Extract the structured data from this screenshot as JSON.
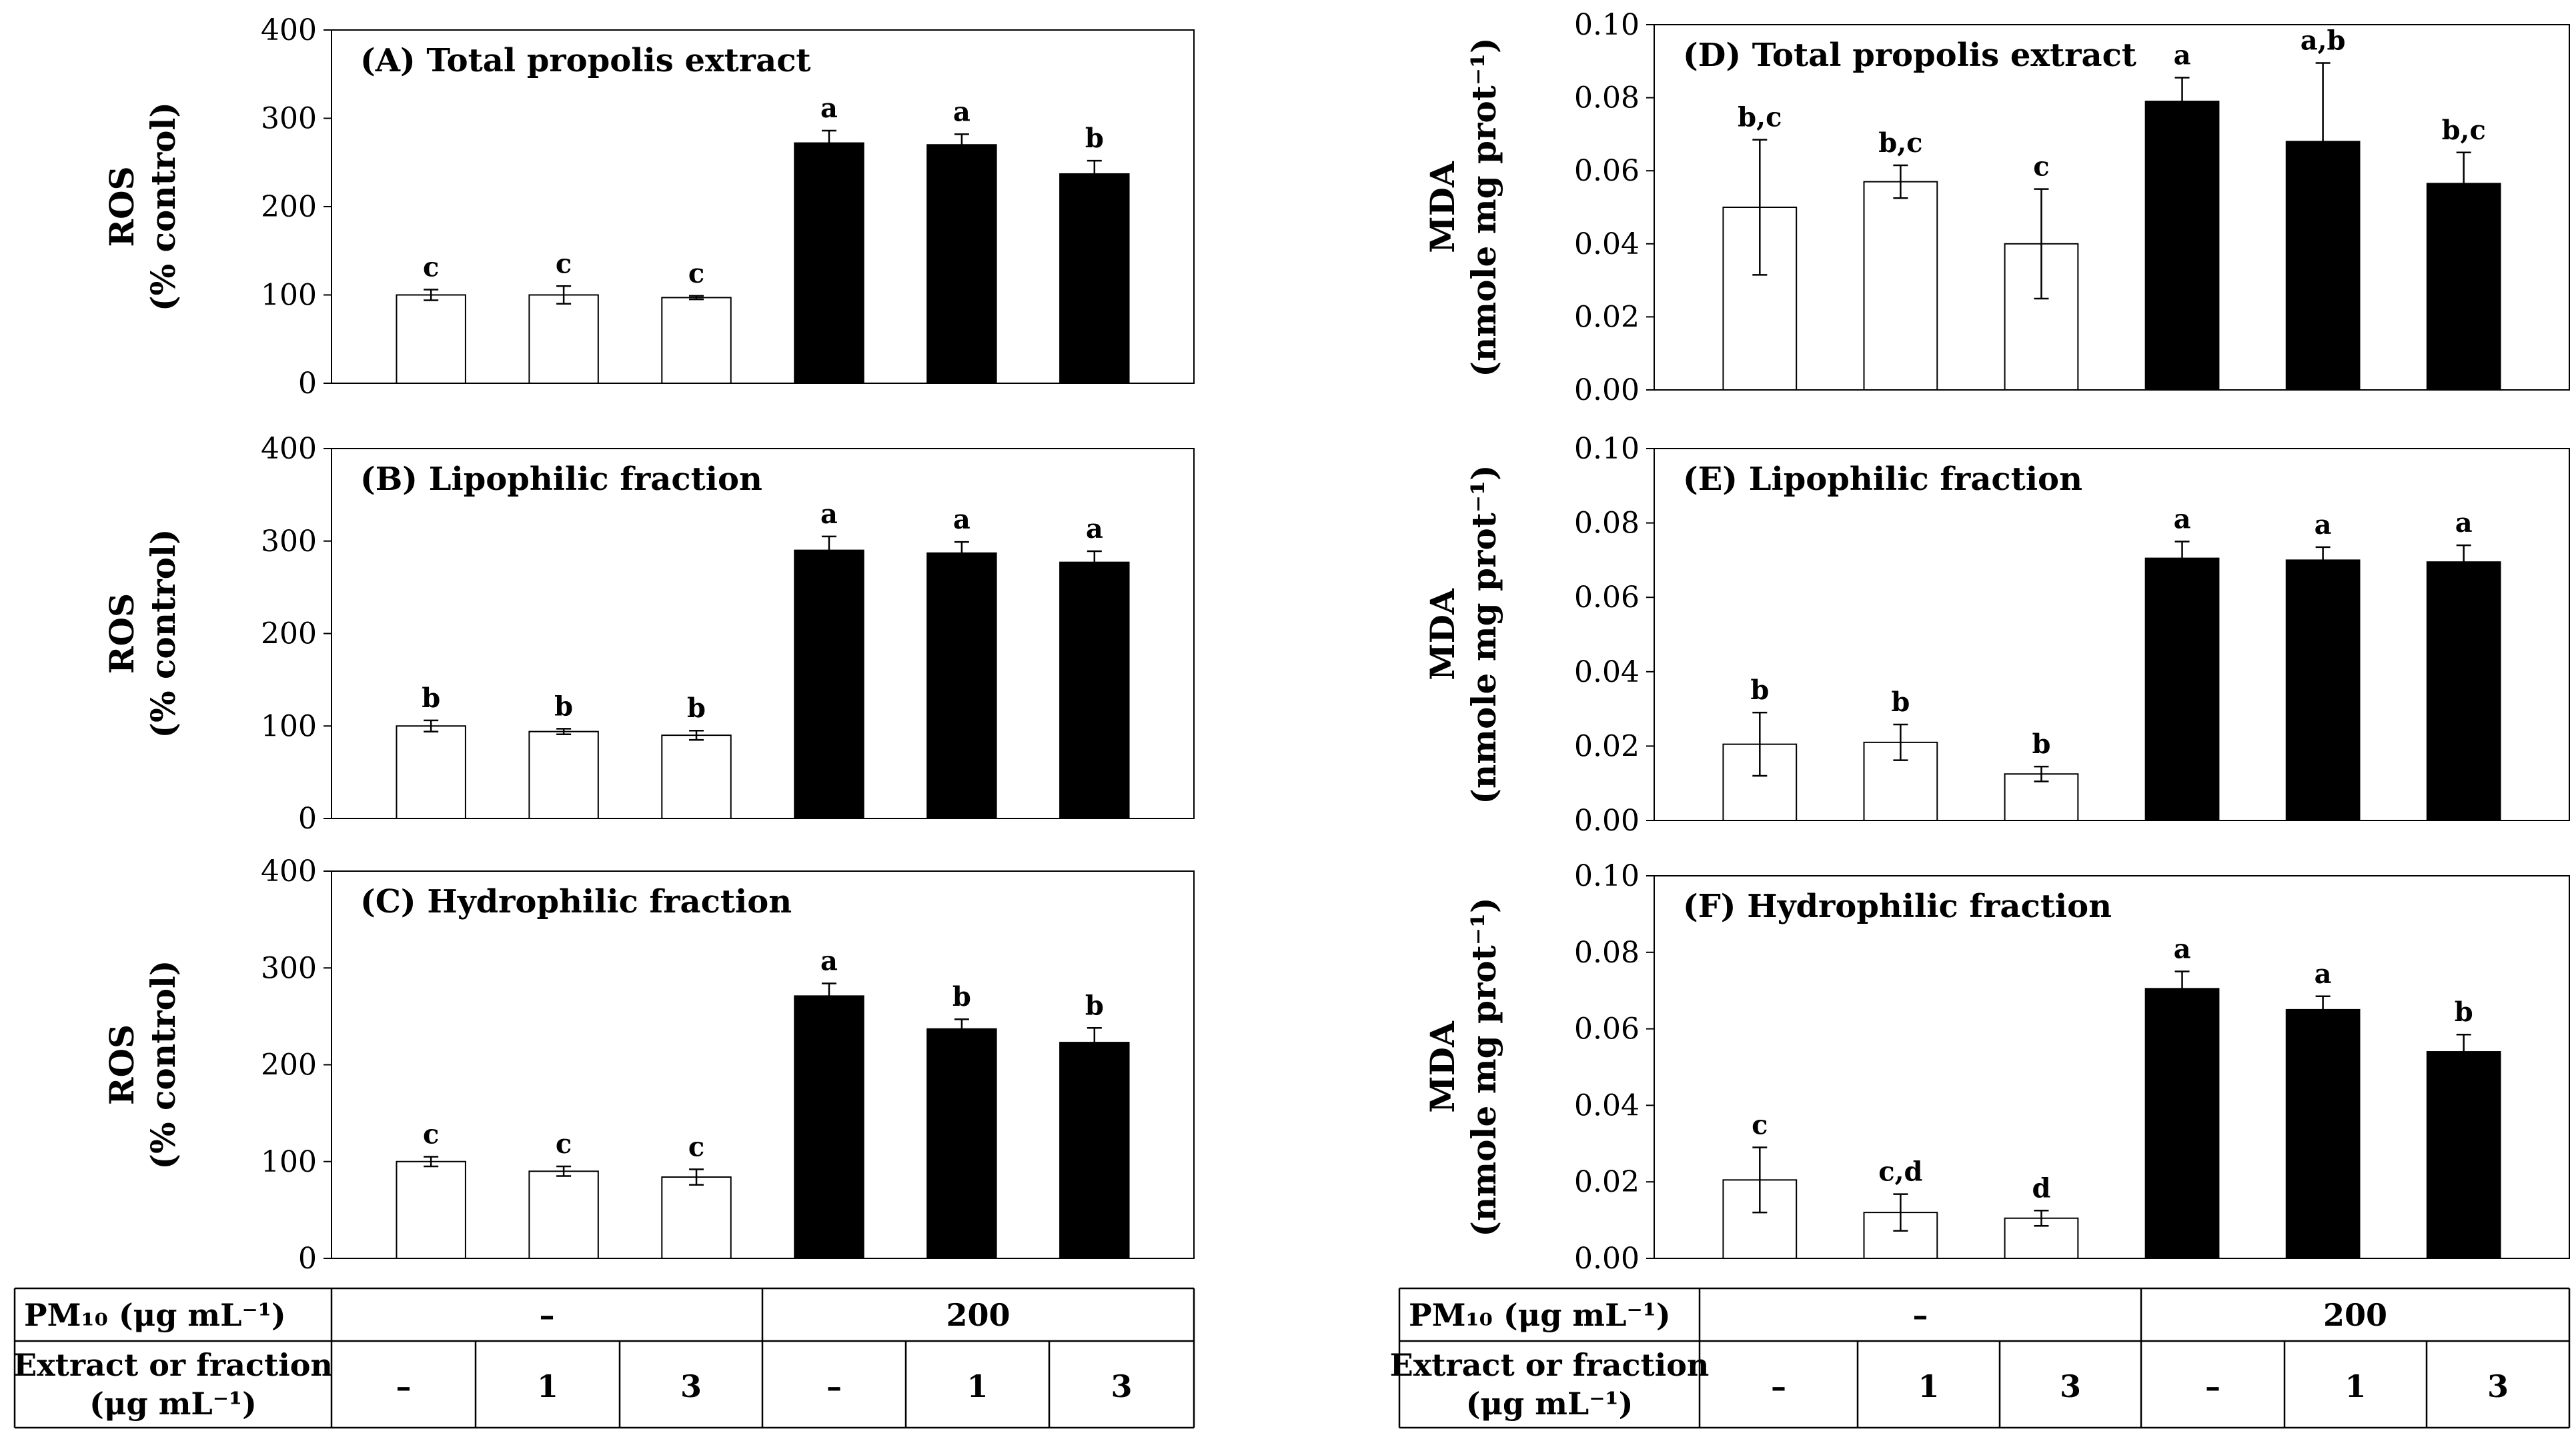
{
  "chart_data": [
    {
      "type": "bar",
      "title": "(A) Total propolis extract",
      "ylabel": "ROS",
      "ylabel_sub": "(% control)",
      "ylim": [
        0,
        400
      ],
      "yticks": [
        "0",
        "100",
        "200",
        "300",
        "400"
      ],
      "values": [
        100,
        100,
        97,
        272,
        270,
        237
      ],
      "errors": [
        6,
        10,
        2,
        14,
        12,
        15
      ],
      "letters": [
        "c",
        "c",
        "c",
        "a",
        "a",
        "b"
      ],
      "fills": [
        "#ffffff",
        "#ffffff",
        "#ffffff",
        "#000000",
        "#000000",
        "#000000"
      ]
    },
    {
      "type": "bar",
      "title": "(B) Lipophilic fraction",
      "ylabel": "ROS",
      "ylabel_sub": "(% control)",
      "ylim": [
        0,
        400
      ],
      "yticks": [
        "0",
        "100",
        "200",
        "300",
        "400"
      ],
      "values": [
        100,
        94,
        90,
        290,
        287,
        277
      ],
      "errors": [
        6,
        3,
        5,
        15,
        12,
        12
      ],
      "letters": [
        "b",
        "b",
        "b",
        "a",
        "a",
        "a"
      ],
      "fills": [
        "#ffffff",
        "#ffffff",
        "#ffffff",
        "#000000",
        "#000000",
        "#000000"
      ]
    },
    {
      "type": "bar",
      "title": "(C) Hydrophilic fraction",
      "ylabel": "ROS",
      "ylabel_sub": "(% control)",
      "ylim": [
        0,
        400
      ],
      "yticks": [
        "0",
        "100",
        "200",
        "300",
        "400"
      ],
      "values": [
        100,
        90,
        84,
        271,
        237,
        223
      ],
      "errors": [
        5,
        5,
        8,
        13,
        10,
        15
      ],
      "letters": [
        "c",
        "c",
        "c",
        "a",
        "b",
        "b"
      ],
      "fills": [
        "#ffffff",
        "#ffffff",
        "#ffffff",
        "#000000",
        "#000000",
        "#000000"
      ]
    },
    {
      "type": "bar",
      "title": "(D) Total propolis extract",
      "ylabel": "MDA",
      "ylabel_sub": "(nmole mg prot⁻¹)",
      "ylim": [
        0,
        0.1
      ],
      "yticks": [
        "0.00",
        "0.02",
        "0.04",
        "0.06",
        "0.08",
        "0.10"
      ],
      "values": [
        0.05,
        0.057,
        0.04,
        0.079,
        0.068,
        0.0565
      ],
      "errors": [
        0.0185,
        0.0045,
        0.015,
        0.0065,
        0.0215,
        0.0085
      ],
      "letters": [
        "b,c",
        "b,c",
        "c",
        "a",
        "a,b",
        "b,c"
      ],
      "fills": [
        "#ffffff",
        "#ffffff",
        "#ffffff",
        "#000000",
        "#000000",
        "#000000"
      ]
    },
    {
      "type": "bar",
      "title": "(E) Lipophilic fraction",
      "ylabel": "MDA",
      "ylabel_sub": "(nmole mg prot⁻¹)",
      "ylim": [
        0,
        0.1
      ],
      "yticks": [
        "0.00",
        "0.02",
        "0.04",
        "0.06",
        "0.08",
        "0.10"
      ],
      "values": [
        0.0205,
        0.021,
        0.0125,
        0.0705,
        0.07,
        0.0695
      ],
      "errors": [
        0.0085,
        0.0048,
        0.002,
        0.0045,
        0.0035,
        0.0045
      ],
      "letters": [
        "b",
        "b",
        "b",
        "a",
        "a",
        "a"
      ],
      "fills": [
        "#ffffff",
        "#ffffff",
        "#ffffff",
        "#000000",
        "#000000",
        "#000000"
      ]
    },
    {
      "type": "bar",
      "title": "(F) Hydrophilic fraction",
      "ylabel": "MDA",
      "ylabel_sub": "(nmole mg prot⁻¹)",
      "ylim": [
        0,
        0.1
      ],
      "yticks": [
        "0.00",
        "0.02",
        "0.04",
        "0.06",
        "0.08",
        "0.10"
      ],
      "values": [
        0.0205,
        0.012,
        0.0105,
        0.0705,
        0.065,
        0.054
      ],
      "errors": [
        0.0085,
        0.0048,
        0.002,
        0.0045,
        0.0035,
        0.0045
      ],
      "letters": [
        "c",
        "c,d",
        "d",
        "a",
        "a",
        "b"
      ],
      "fills": [
        "#ffffff",
        "#ffffff",
        "#ffffff",
        "#000000",
        "#000000",
        "#000000"
      ]
    }
  ],
  "treatment_tables": [
    {
      "pm_label": "PM₁₀ (μg mL⁻¹)",
      "pm_values": [
        "–",
        "200"
      ],
      "extract_label_line1": "Extract or fraction",
      "extract_label_line2": "(μg mL⁻¹)",
      "extract_values": [
        "–",
        "1",
        "3",
        "–",
        "1",
        "3"
      ]
    },
    {
      "pm_label": "PM₁₀ (μg mL⁻¹)",
      "pm_values": [
        "–",
        "200"
      ],
      "extract_label_line1": "Extract or fraction",
      "extract_label_line2": "(μg mL⁻¹)",
      "extract_values": [
        "–",
        "1",
        "3",
        "–",
        "1",
        "3"
      ]
    }
  ]
}
